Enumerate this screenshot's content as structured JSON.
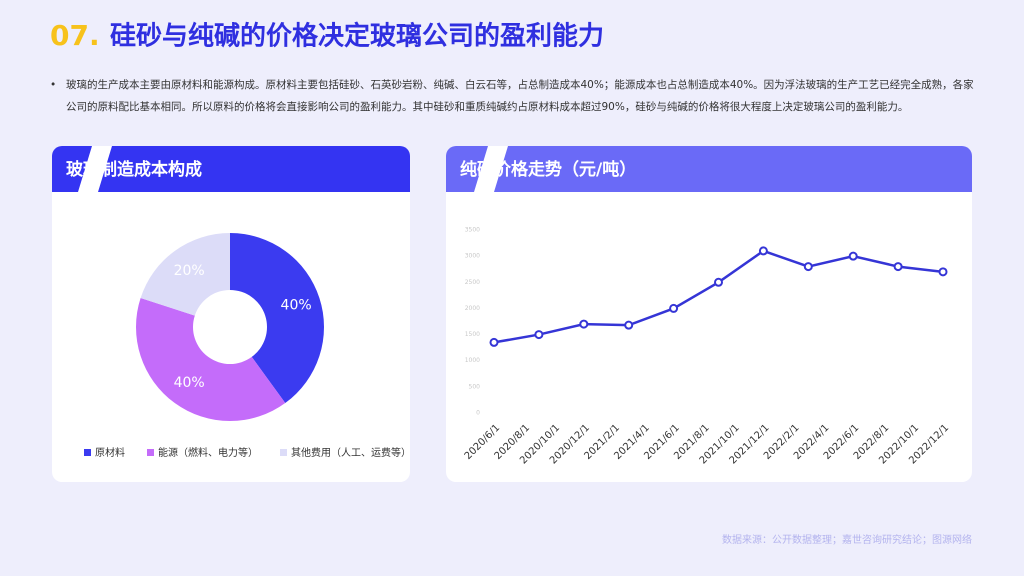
{
  "header": {
    "number": "07.",
    "title": "硅砂与纯碱的价格决定玻璃公司的盈利能力"
  },
  "bullet": "玻璃的生产成本主要由原材料和能源构成。原材料主要包括硅砂、石英砂岩粉、纯碱、白云石等，占总制造成本40%；能源成本也占总制造成本40%。因为浮法玻璃的生产工艺已经完全成熟，各家公司的原料配比基本相同。所以原料的价格将会直接影响公司的盈利能力。其中硅砂和重质纯碱约占原材料成本超过90%，硅砂与纯碱的价格将很大程度上决定玻璃公司的盈利能力。",
  "chart_data": [
    {
      "type": "pie",
      "title": "玻璃制造成本构成",
      "categories": [
        "原材料",
        "能源（燃料、电力等）",
        "其他费用（人工、运费等）"
      ],
      "values": [
        40,
        40,
        20
      ],
      "value_labels": [
        "40%",
        "40%",
        "20%"
      ],
      "colors": [
        "#3b3bf0",
        "#c46cfa",
        "#dcdcf8"
      ],
      "donut": true
    },
    {
      "type": "line",
      "title": "纯碱价格走势（元/吨）",
      "x": [
        "2020/6/1",
        "2020/9/1",
        "2020/12/1",
        "2021/3/1",
        "2021/6/1",
        "2021/9/1",
        "2021/12/1",
        "2022/3/1",
        "2022/6/1",
        "2022/9/1",
        "2022/12/1"
      ],
      "series": [
        {
          "name": "纯碱价格",
          "color": "#3535d6",
          "values": [
            1350,
            1500,
            1700,
            1680,
            2000,
            2500,
            3100,
            2800,
            3000,
            2800,
            2700
          ]
        }
      ],
      "xlim": [
        "2020/6/1",
        "2022/12/1"
      ],
      "xticks": [
        "2020/6/1",
        "2020/8/1",
        "2020/10/1",
        "2020/12/1",
        "2021/2/1",
        "2021/4/1",
        "2021/6/1",
        "2021/8/1",
        "2021/10/1",
        "2021/12/1",
        "2022/2/1",
        "2022/4/1",
        "2022/6/1",
        "2022/8/1",
        "2022/10/1",
        "2022/12/1"
      ],
      "ylim": [
        0,
        3500
      ],
      "yticks": [
        0,
        500,
        1000,
        1500,
        2000,
        2500,
        3000,
        3500
      ],
      "grid": false
    }
  ],
  "source": "数据来源：公开数据整理；嘉世咨询研究结论；图源网络"
}
